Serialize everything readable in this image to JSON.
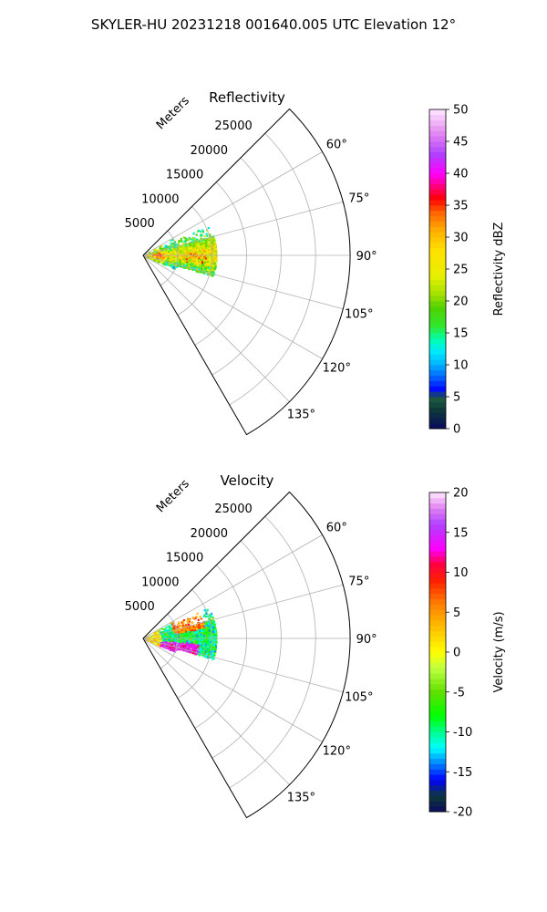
{
  "figure": {
    "suptitle": "SKYLER-HU  20231218  001640.005 UTC Elevation 12°"
  },
  "chart_data": [
    {
      "type": "heatmap",
      "projection": "polar-sector",
      "title": "Reflectivity",
      "range_label": "Meters",
      "theta_range_deg": [
        45,
        150
      ],
      "r_range": [
        0,
        30000
      ],
      "r_ticks": [
        5000,
        10000,
        15000,
        20000,
        25000
      ],
      "r_tick_labels": [
        "5000",
        "10000",
        "15000",
        "20000",
        "25000"
      ],
      "theta_ticks_deg": [
        60,
        75,
        90,
        105,
        120,
        135
      ],
      "theta_tick_labels": [
        "60°",
        "75°",
        "90°",
        "105°",
        "120°",
        "135°"
      ],
      "grid": true,
      "colorbar": {
        "label": "Reflectivity dBZ",
        "range": [
          0,
          50
        ],
        "ticks": [
          0,
          5,
          10,
          15,
          20,
          25,
          30,
          35,
          40,
          45,
          50
        ],
        "tick_labels": [
          "0",
          "5",
          "10",
          "15",
          "20",
          "25",
          "30",
          "35",
          "40",
          "45",
          "50"
        ],
        "colormap": "NWS reflectivity",
        "color_stops": [
          [
            0,
            "#0a0a5a"
          ],
          [
            3,
            "#0e3a3a"
          ],
          [
            5,
            "#1f5f3f"
          ],
          [
            6,
            "#0000ff"
          ],
          [
            8,
            "#0060ff"
          ],
          [
            10,
            "#00b0ff"
          ],
          [
            12,
            "#00e8ff"
          ],
          [
            14,
            "#00ffb0"
          ],
          [
            16,
            "#30e830"
          ],
          [
            19,
            "#50d000"
          ],
          [
            21,
            "#a0e000"
          ],
          [
            24,
            "#e8f000"
          ],
          [
            28,
            "#ffe000"
          ],
          [
            31,
            "#ffb000"
          ],
          [
            34,
            "#ff6000"
          ],
          [
            36,
            "#ff0000"
          ],
          [
            40,
            "#ff00ff"
          ],
          [
            43,
            "#b040ff"
          ],
          [
            46,
            "#e080f0"
          ],
          [
            50,
            "#ffe8ff"
          ]
        ]
      }
    },
    {
      "type": "heatmap",
      "projection": "polar-sector",
      "title": "Velocity",
      "range_label": "Meters",
      "theta_range_deg": [
        45,
        150
      ],
      "r_range": [
        0,
        30000
      ],
      "r_ticks": [
        5000,
        10000,
        15000,
        20000,
        25000
      ],
      "r_tick_labels": [
        "5000",
        "10000",
        "15000",
        "20000",
        "25000"
      ],
      "theta_ticks_deg": [
        60,
        75,
        90,
        105,
        120,
        135
      ],
      "theta_tick_labels": [
        "60°",
        "75°",
        "90°",
        "105°",
        "120°",
        "135°"
      ],
      "grid": true,
      "colorbar": {
        "label": "Velocity (m/s)",
        "range": [
          -20,
          20
        ],
        "ticks": [
          -20,
          -15,
          -10,
          -5,
          0,
          5,
          10,
          15,
          20
        ],
        "tick_labels": [
          "-20",
          "-15",
          "-10",
          "-5",
          "0",
          "5",
          "10",
          "15",
          "20"
        ],
        "colormap": "NWS velocity",
        "color_stops": [
          [
            -20,
            "#0a0a5a"
          ],
          [
            -18,
            "#0e3a3a"
          ],
          [
            -16,
            "#0000ff"
          ],
          [
            -14,
            "#0080ff"
          ],
          [
            -12,
            "#00ffff"
          ],
          [
            -10,
            "#00ff90"
          ],
          [
            -8,
            "#00ff00"
          ],
          [
            -5,
            "#60e000"
          ],
          [
            -2,
            "#c0ff40"
          ],
          [
            0,
            "#ffff00"
          ],
          [
            3,
            "#ffc000"
          ],
          [
            6,
            "#ff8000"
          ],
          [
            9,
            "#ff2000"
          ],
          [
            11,
            "#ff0040"
          ],
          [
            13,
            "#ff00ff"
          ],
          [
            16,
            "#b040ff"
          ],
          [
            18,
            "#e080f0"
          ],
          [
            20,
            "#ffe8ff"
          ]
        ]
      }
    }
  ]
}
